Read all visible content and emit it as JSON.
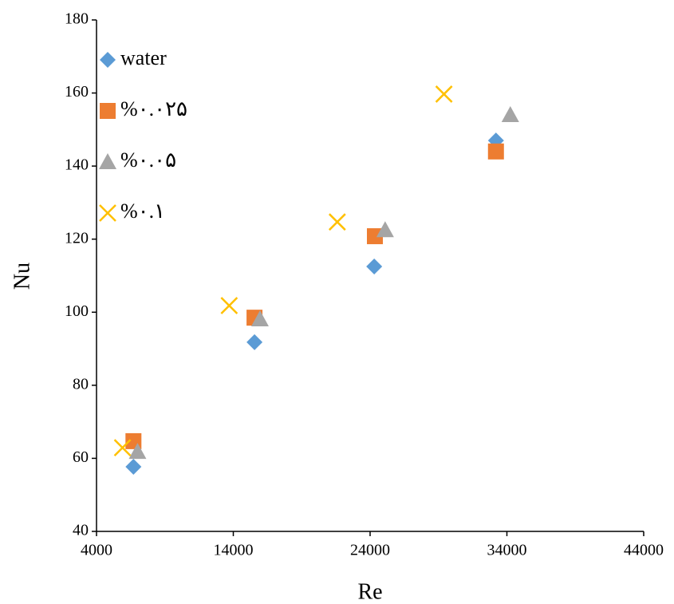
{
  "chart_data": {
    "type": "scatter",
    "x_label": "Re",
    "y_label": "Nu",
    "xlim": [
      4000,
      44000
    ],
    "xticks": [
      4000,
      14000,
      24000,
      34000,
      44000
    ],
    "ylim": [
      40,
      180
    ],
    "yticks": [
      40,
      60,
      80,
      100,
      120,
      140,
      160,
      180
    ],
    "legend": "upper left",
    "series": [
      {
        "name": "water",
        "color": "#5b9bd5",
        "marker": "diamond",
        "x": [
          6700,
          15550,
          24300,
          33200
        ],
        "values": [
          57.7,
          91.8,
          112.5,
          147
        ]
      },
      {
        "name": "%۰.۰۲۵",
        "color": "#ed7d31",
        "marker": "square",
        "x": [
          6700,
          15550,
          24350,
          33200
        ],
        "values": [
          64.7,
          98.5,
          120.8,
          144
        ]
      },
      {
        "name": "%۰.۰۵",
        "color": "#a5a5a5",
        "marker": "triangle",
        "x": [
          7000,
          15950,
          25100,
          34250
        ],
        "values": [
          61.8,
          98.1,
          122.5,
          154
        ]
      },
      {
        "name": "%۰.۱",
        "color": "#ffc000",
        "marker": "x",
        "x": [
          5900,
          13700,
          21600,
          29400
        ],
        "values": [
          62.9,
          101.8,
          124.7,
          159.7
        ]
      }
    ]
  }
}
